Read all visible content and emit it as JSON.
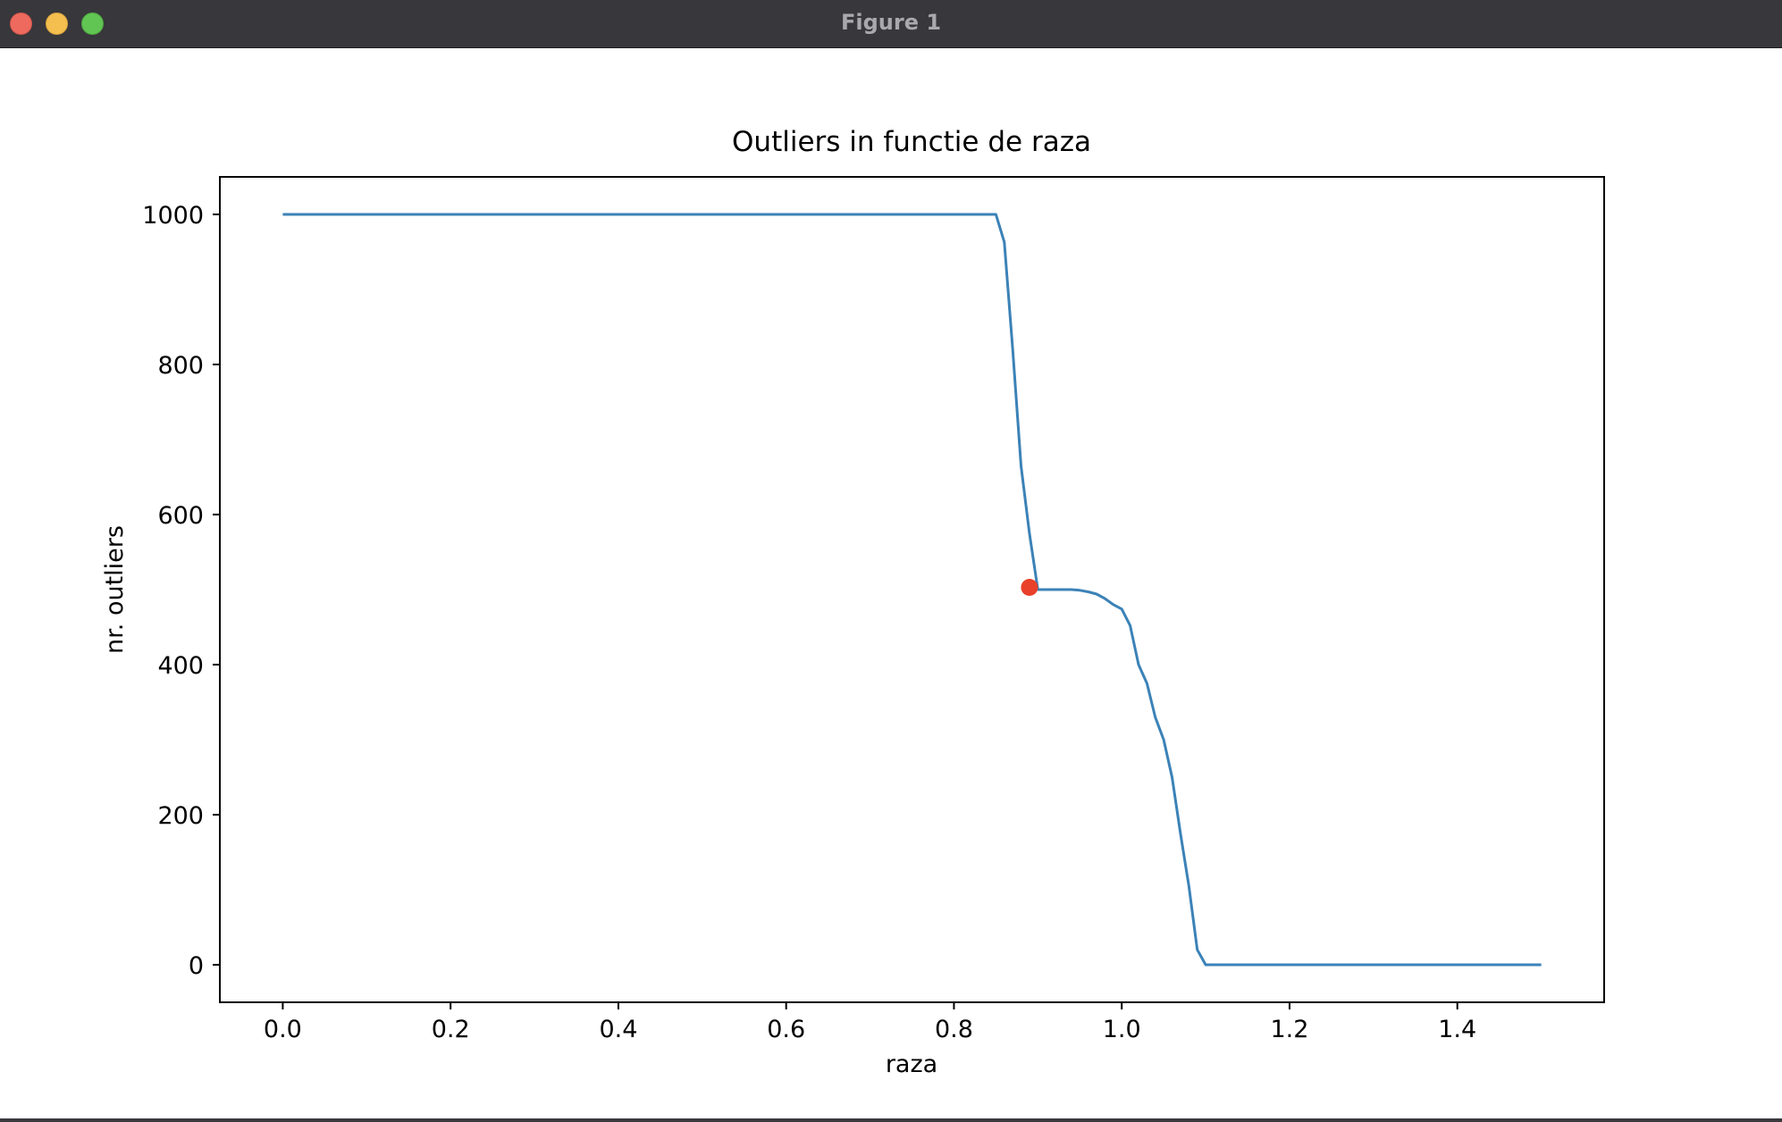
{
  "window": {
    "title": "Figure 1",
    "buttons": [
      "close",
      "minimize",
      "maximize"
    ]
  },
  "chart_data": {
    "type": "line",
    "title": "Outliers in functie de raza",
    "xlabel": "raza",
    "ylabel": "nr. outliers",
    "xlim": [
      -0.075,
      1.575
    ],
    "ylim": [
      -50,
      1050
    ],
    "xticks": [
      0.0,
      0.2,
      0.4,
      0.6,
      0.8,
      1.0,
      1.2,
      1.4
    ],
    "xtick_labels": [
      "0.0",
      "0.2",
      "0.4",
      "0.6",
      "0.8",
      "1.0",
      "1.2",
      "1.4"
    ],
    "yticks": [
      0,
      200,
      400,
      600,
      800,
      1000
    ],
    "ytick_labels": [
      "0",
      "200",
      "400",
      "600",
      "800",
      "1000"
    ],
    "grid": false,
    "series": [
      {
        "color": "#3b82b7",
        "x": [
          0.0,
          0.85,
          0.86,
          0.87,
          0.88,
          0.89,
          0.9,
          0.91,
          0.92,
          0.93,
          0.94,
          0.95,
          0.96,
          0.97,
          0.98,
          0.99,
          1.0,
          1.01,
          1.02,
          1.03,
          1.04,
          1.05,
          1.06,
          1.07,
          1.08,
          1.09,
          1.1,
          1.5
        ],
        "y": [
          1000,
          1000,
          963,
          820,
          665,
          575,
          500,
          500,
          500,
          500,
          500,
          499,
          497,
          494,
          488,
          480,
          474,
          452,
          400,
          375,
          330,
          300,
          250,
          175,
          105,
          20,
          0,
          0
        ]
      }
    ],
    "highlight_point": {
      "x": 0.89,
      "y": 503,
      "color": "#e8402a"
    }
  }
}
